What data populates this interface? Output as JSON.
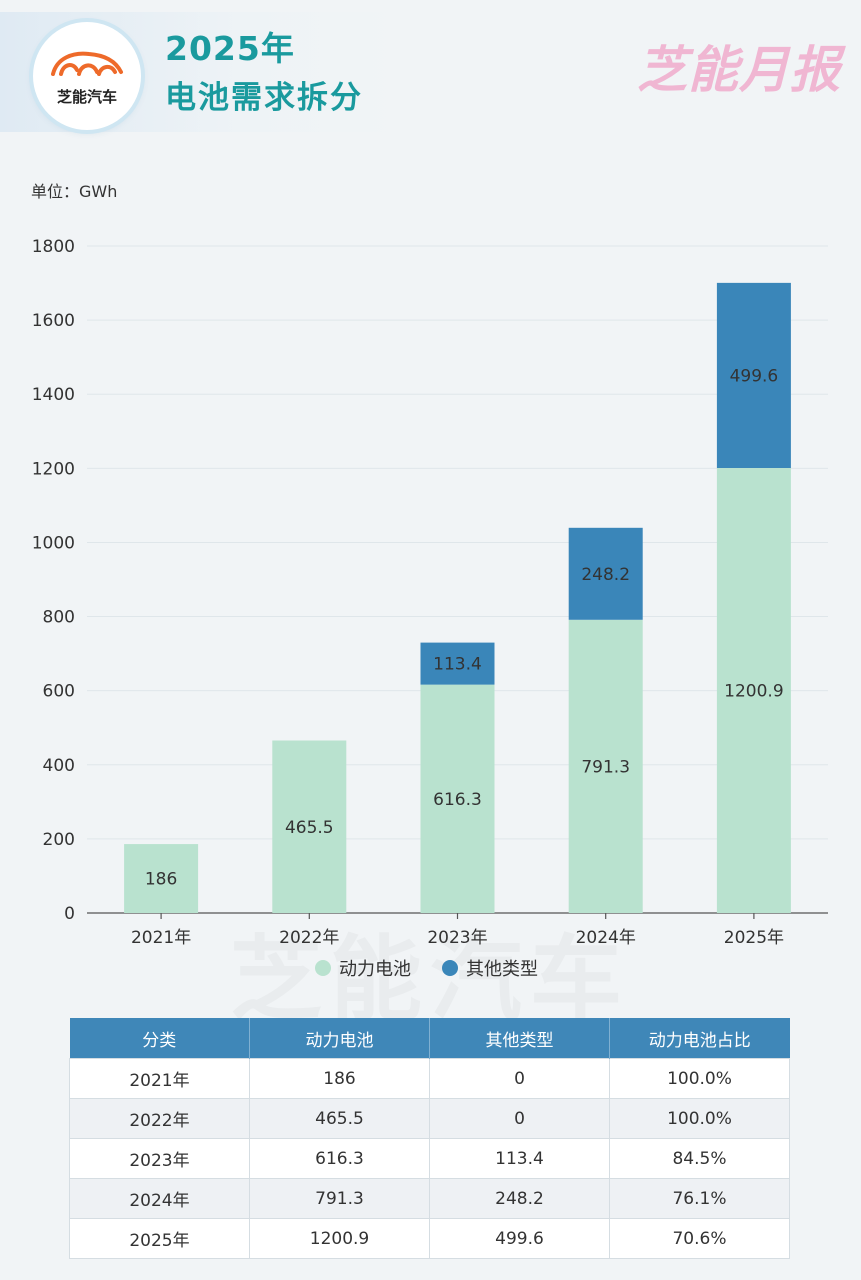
{
  "header": {
    "logo_text": "芝能汽车",
    "title_line1": "2025年",
    "title_line2": "电池需求拆分",
    "brand": "芝能月报"
  },
  "unit_label": "单位：GWh",
  "watermark": "芝能汽车",
  "colors": {
    "power_battery": "#b9e2cf",
    "other_types": "#3a86b9",
    "title": "#1a9a9e",
    "table_header": "#3f87b8"
  },
  "chart_data": {
    "type": "bar",
    "stacked": true,
    "categories": [
      "2021年",
      "2022年",
      "2023年",
      "2024年",
      "2025年"
    ],
    "series": [
      {
        "name": "动力电池",
        "values": [
          186,
          465.5,
          616.3,
          791.3,
          1200.9
        ],
        "labels": [
          "186",
          "465.5",
          "616.3",
          "791.3",
          "1200.9"
        ]
      },
      {
        "name": "其他类型",
        "values": [
          0,
          0,
          113.4,
          248.2,
          499.6
        ],
        "labels": [
          "",
          "",
          "113.4",
          "248.2",
          "499.6"
        ]
      }
    ],
    "y_ticks": [
      "0",
      "200",
      "400",
      "600",
      "800",
      "1000",
      "1200",
      "1400",
      "1600",
      "1800"
    ],
    "ylim": [
      0,
      1800
    ],
    "grid": true,
    "legend": "bottom"
  },
  "table": {
    "headers": [
      "分类",
      "动力电池",
      "其他类型",
      "动力电池占比"
    ],
    "rows": [
      [
        "2021年",
        "186",
        "0",
        "100.0%"
      ],
      [
        "2022年",
        "465.5",
        "0",
        "100.0%"
      ],
      [
        "2023年",
        "616.3",
        "113.4",
        "84.5%"
      ],
      [
        "2024年",
        "791.3",
        "248.2",
        "76.1%"
      ],
      [
        "2025年",
        "1200.9",
        "499.6",
        "70.6%"
      ]
    ]
  }
}
